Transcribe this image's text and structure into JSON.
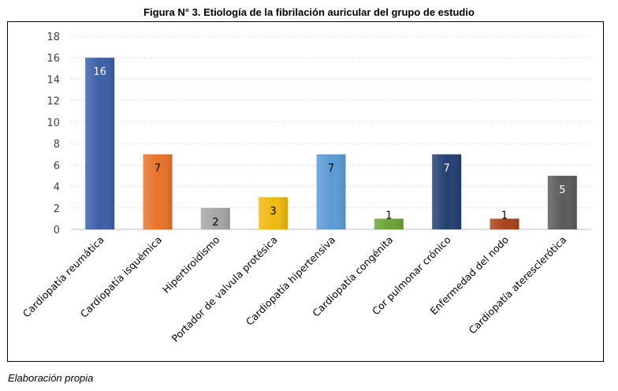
{
  "figure_title": "Figura N° 3. Etiología de la fibrilación auricular del grupo de estudio",
  "caption": "Elaboración propia",
  "chart_data": {
    "type": "bar",
    "title": "",
    "xlabel": "",
    "ylabel": "",
    "ylim": [
      0,
      18
    ],
    "yticks": [
      0,
      2,
      4,
      6,
      8,
      10,
      12,
      14,
      16,
      18
    ],
    "grid": true,
    "categories": [
      "Cardiopatía reumática",
      "Cardiopatía isquémica",
      "Hipertiroidismo",
      "Portador de valvula protésica",
      "Cardiopatía hipertensiva",
      "Cardiopatía congénita",
      "Cor pulmonar crónico",
      "Enfermedad del nodo",
      "Cardiopatía ateresclerótica"
    ],
    "values": [
      16,
      7,
      2,
      3,
      7,
      1,
      7,
      1,
      5
    ],
    "colors": [
      "#3b5fa8",
      "#e8732a",
      "#a6a6a6",
      "#f0b90f",
      "#5b9bd5",
      "#6aa336",
      "#233f72",
      "#a8441c",
      "#5b5b5b"
    ],
    "label_colors": [
      "#ffffff",
      "#000000",
      "#000000",
      "#000000",
      "#000000",
      "#000000",
      "#ffffff",
      "#000000",
      "#ffffff"
    ]
  }
}
